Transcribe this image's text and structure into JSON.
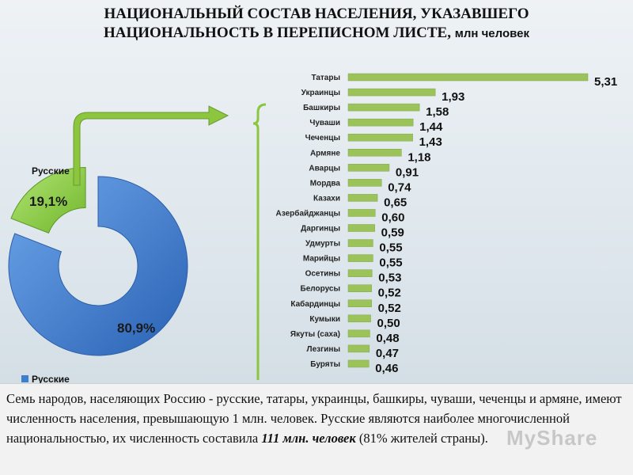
{
  "title": {
    "line1": "НАЦИОНАЛЬНЫЙ СОСТАВ НАСЕЛЕНИЯ, УКАЗАВШЕГО",
    "line2": "НАЦИОНАЛЬНОСТЬ В ПЕРЕПИСНОМ ЛИСТЕ,",
    "unit": "млн человек"
  },
  "colors": {
    "bar": "#9bc35a",
    "pie_main": "#3d7fcf",
    "pie_other": "#8ccf46",
    "arrow": "#8cc63f"
  },
  "chart_data": [
    {
      "type": "pie",
      "style": "donut",
      "slices": [
        {
          "label": "Русские",
          "value": 80.9,
          "display": "80,9%"
        },
        {
          "value": 19.1,
          "display": "19,1%"
        }
      ],
      "legend": [
        "Русские"
      ]
    },
    {
      "type": "bar",
      "orientation": "horizontal",
      "categories": [
        "Татары",
        "Украинцы",
        "Башкиры",
        "Чуваши",
        "Чеченцы",
        "Армяне",
        "Аварцы",
        "Мордва",
        "Казахи",
        "Азербайджанцы",
        "Даргинцы",
        "Удмурты",
        "Марийцы",
        "Осетины",
        "Белорусы",
        "Кабардинцы",
        "Кумыки",
        "Якуты (саха)",
        "Лезгины",
        "Буряты"
      ],
      "values": [
        5.31,
        1.93,
        1.58,
        1.44,
        1.43,
        1.18,
        0.91,
        0.74,
        0.65,
        0.6,
        0.59,
        0.55,
        0.55,
        0.53,
        0.52,
        0.52,
        0.5,
        0.48,
        0.47,
        0.46
      ],
      "value_labels": [
        "5,31",
        "1,93",
        "1,58",
        "1,44",
        "1,43",
        "1,18",
        "0,91",
        "0,74",
        "0,65",
        "0,60",
        "0,59",
        "0,55",
        "0,55",
        "0,53",
        "0,52",
        "0,52",
        "0,50",
        "0,48",
        "0,47",
        "0,46"
      ],
      "xlim": [
        0,
        5.31
      ]
    }
  ],
  "caption": {
    "text1": "Семь народов, населяющих  Россию - русские, татары, украинцы, башкиры, чуваши, чеченцы и армяне, имеют численность населения, превышающую 1 млн. человек. Русские являются наиболее многочисленной национальностью, их численность составила ",
    "bold": "111 млн. человек",
    "text2": " (81% жителей страны)."
  },
  "watermark": "MyShare"
}
